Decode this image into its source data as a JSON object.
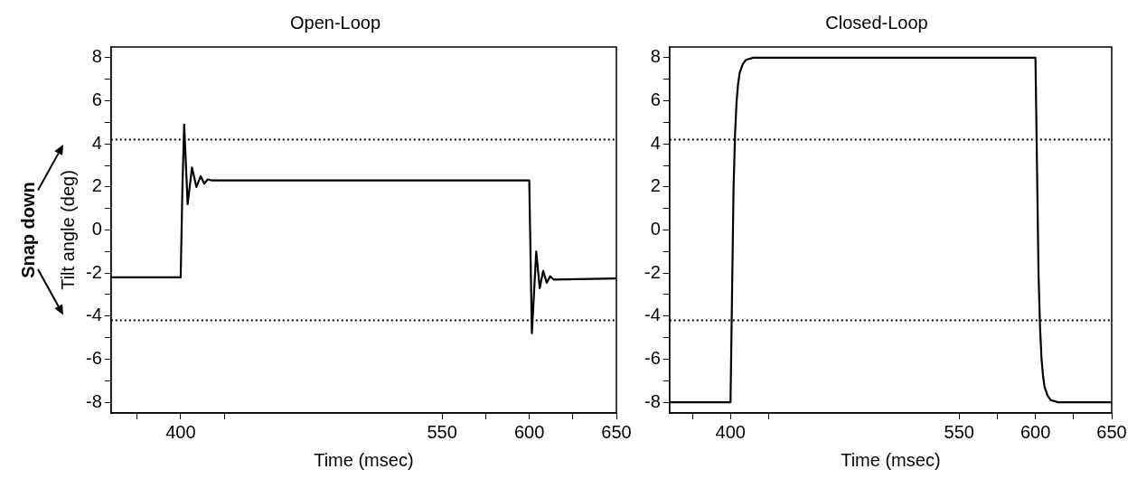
{
  "chart_data": [
    {
      "type": "line",
      "title": "Open-Loop",
      "xlabel": "Time (msec)",
      "ylabel": "Tilt angle (deg)",
      "annotations": [
        "Snap down"
      ],
      "marker": "none",
      "line_style": "solid",
      "legend": false,
      "series": [
        {
          "color": "#000000",
          "x": [
            360,
            400,
            401,
            402,
            404,
            406.5,
            409,
            411.5,
            413.5,
            415.5,
            418,
            600,
            601.5,
            604,
            606,
            608,
            610,
            612,
            614,
            650
          ],
          "values": [
            -2.2,
            -2.2,
            2.0,
            4.9,
            1.2,
            2.9,
            2.0,
            2.5,
            2.15,
            2.35,
            2.3,
            2.3,
            -4.8,
            -1.0,
            -2.7,
            -1.9,
            -2.45,
            -2.15,
            -2.3,
            -2.25
          ]
        }
      ],
      "xlim": [
        360,
        650
      ],
      "xticks": [
        {
          "value": 375,
          "label": null
        },
        400,
        {
          "value": 425,
          "label": null
        },
        550,
        {
          "value": 575,
          "label": null
        },
        600,
        {
          "value": 625,
          "label": null
        },
        650
      ],
      "ylim": [
        -8.5,
        8.5
      ],
      "yticks": [
        -8,
        {
          "value": -7,
          "label": null
        },
        -6,
        {
          "value": -5,
          "label": null
        },
        -4,
        {
          "value": -3,
          "label": null
        },
        -2,
        {
          "value": -1,
          "label": null
        },
        0,
        {
          "value": 1,
          "label": null
        },
        2,
        {
          "value": 3,
          "label": null
        },
        4,
        {
          "value": 5,
          "label": null
        },
        6,
        {
          "value": 7,
          "label": null
        },
        8
      ],
      "ref_lines": [
        {
          "axis": "y",
          "value": 4.2,
          "line_style": "dotted",
          "color": "#000000"
        },
        {
          "axis": "y",
          "value": -4.2,
          "line_style": "dotted",
          "color": "#000000"
        }
      ]
    },
    {
      "type": "line",
      "title": "Closed-Loop",
      "xlabel": "Time (msec)",
      "marker": "none",
      "line_style": "solid",
      "legend": false,
      "series": [
        {
          "color": "#000000",
          "x": [
            360,
            400,
            401,
            402,
            403,
            404,
            405,
            406,
            408,
            410,
            415,
            600,
            601,
            602,
            603,
            604,
            605,
            606,
            608,
            610,
            615,
            650
          ],
          "values": [
            -8,
            -8,
            -3,
            2,
            4.5,
            6,
            6.8,
            7.3,
            7.7,
            7.9,
            8,
            8,
            3,
            -2,
            -4.5,
            -6,
            -6.8,
            -7.3,
            -7.7,
            -7.9,
            -8,
            -8
          ]
        }
      ],
      "xlim": [
        360,
        650
      ],
      "xticks": [
        {
          "value": 375,
          "label": null
        },
        400,
        {
          "value": 425,
          "label": null
        },
        550,
        {
          "value": 575,
          "label": null
        },
        600,
        {
          "value": 625,
          "label": null
        },
        650
      ],
      "ylim": [
        -8.5,
        8.5
      ],
      "yticks": [
        -8,
        {
          "value": -7,
          "label": null
        },
        -6,
        {
          "value": -5,
          "label": null
        },
        -4,
        {
          "value": -3,
          "label": null
        },
        -2,
        {
          "value": -1,
          "label": null
        },
        0,
        {
          "value": 1,
          "label": null
        },
        2,
        {
          "value": 3,
          "label": null
        },
        4,
        {
          "value": 5,
          "label": null
        },
        6,
        {
          "value": 7,
          "label": null
        },
        8
      ],
      "ref_lines": [
        {
          "axis": "y",
          "value": 4.2,
          "line_style": "dotted",
          "color": "#000000"
        },
        {
          "axis": "y",
          "value": -4.2,
          "line_style": "dotted",
          "color": "#000000"
        }
      ]
    }
  ]
}
